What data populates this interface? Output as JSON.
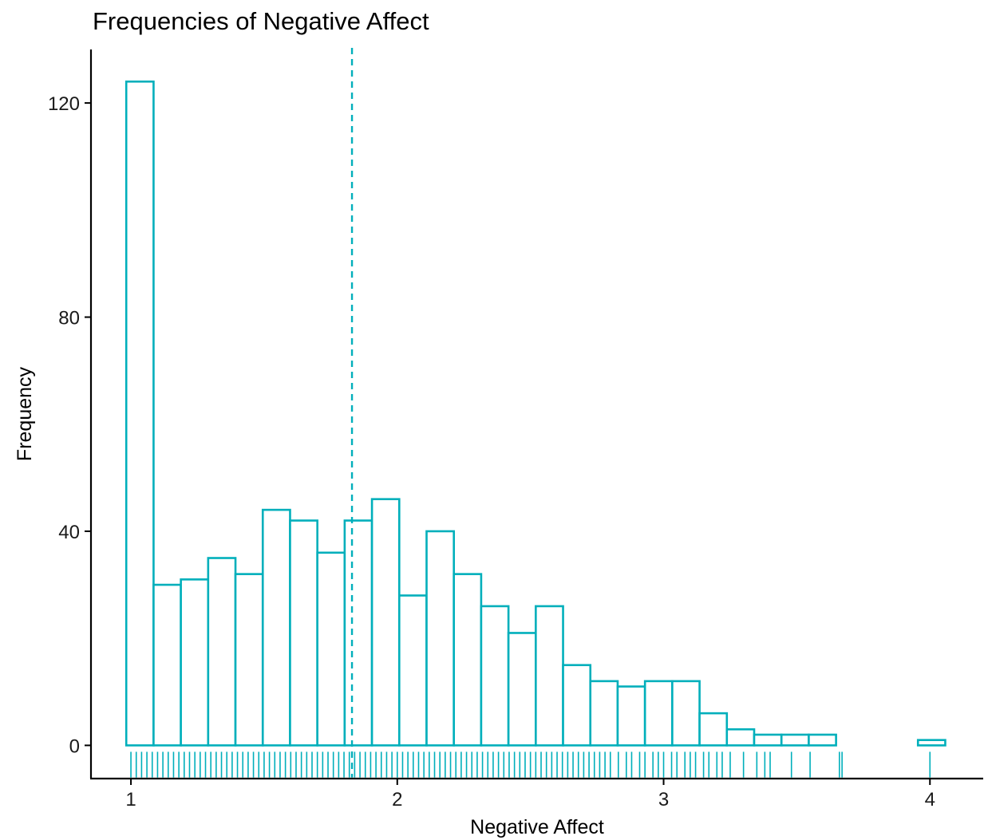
{
  "chart_data": {
    "type": "bar",
    "subtype": "histogram",
    "title": "Frequencies of Negative Affect",
    "xlabel": "Negative Affect",
    "ylabel": "Frequency",
    "xlim": [
      0.85,
      4.2
    ],
    "ylim": [
      -6.2,
      130
    ],
    "x_ticks": [
      1,
      2,
      3,
      4
    ],
    "y_ticks": [
      0,
      40,
      80,
      120
    ],
    "grid": false,
    "legend": "none",
    "bin_width": 0.1025,
    "bin_start": 0.9825,
    "values": [
      124,
      30,
      31,
      35,
      32,
      44,
      42,
      36,
      42,
      46,
      28,
      40,
      32,
      26,
      21,
      26,
      15,
      12,
      11,
      12,
      12,
      6,
      3,
      2,
      2,
      2,
      0,
      0,
      0,
      1
    ],
    "mean_line_x": 1.83,
    "rug_x": [
      1.0,
      1.02,
      1.04,
      1.06,
      1.08,
      1.1,
      1.12,
      1.14,
      1.16,
      1.18,
      1.2,
      1.22,
      1.24,
      1.26,
      1.28,
      1.3,
      1.32,
      1.34,
      1.36,
      1.38,
      1.4,
      1.42,
      1.44,
      1.46,
      1.48,
      1.5,
      1.52,
      1.54,
      1.56,
      1.58,
      1.6,
      1.62,
      1.64,
      1.66,
      1.68,
      1.7,
      1.72,
      1.74,
      1.76,
      1.78,
      1.8,
      1.82,
      1.84,
      1.86,
      1.88,
      1.9,
      1.92,
      1.94,
      1.96,
      1.98,
      2.0,
      2.02,
      2.04,
      2.06,
      2.08,
      2.1,
      2.12,
      2.14,
      2.16,
      2.18,
      2.2,
      2.22,
      2.24,
      2.26,
      2.28,
      2.3,
      2.32,
      2.34,
      2.36,
      2.38,
      2.4,
      2.42,
      2.44,
      2.46,
      2.48,
      2.5,
      2.52,
      2.54,
      2.56,
      2.58,
      2.6,
      2.62,
      2.64,
      2.66,
      2.68,
      2.7,
      2.72,
      2.74,
      2.76,
      2.78,
      2.8,
      2.83,
      2.86,
      2.88,
      2.91,
      2.93,
      2.96,
      2.98,
      3.0,
      3.03,
      3.05,
      3.08,
      3.1,
      3.12,
      3.15,
      3.17,
      3.2,
      3.22,
      3.25,
      3.3,
      3.35,
      3.38,
      3.4,
      3.48,
      3.55,
      3.66,
      3.67,
      4.0
    ],
    "color": "#00AFBB"
  }
}
